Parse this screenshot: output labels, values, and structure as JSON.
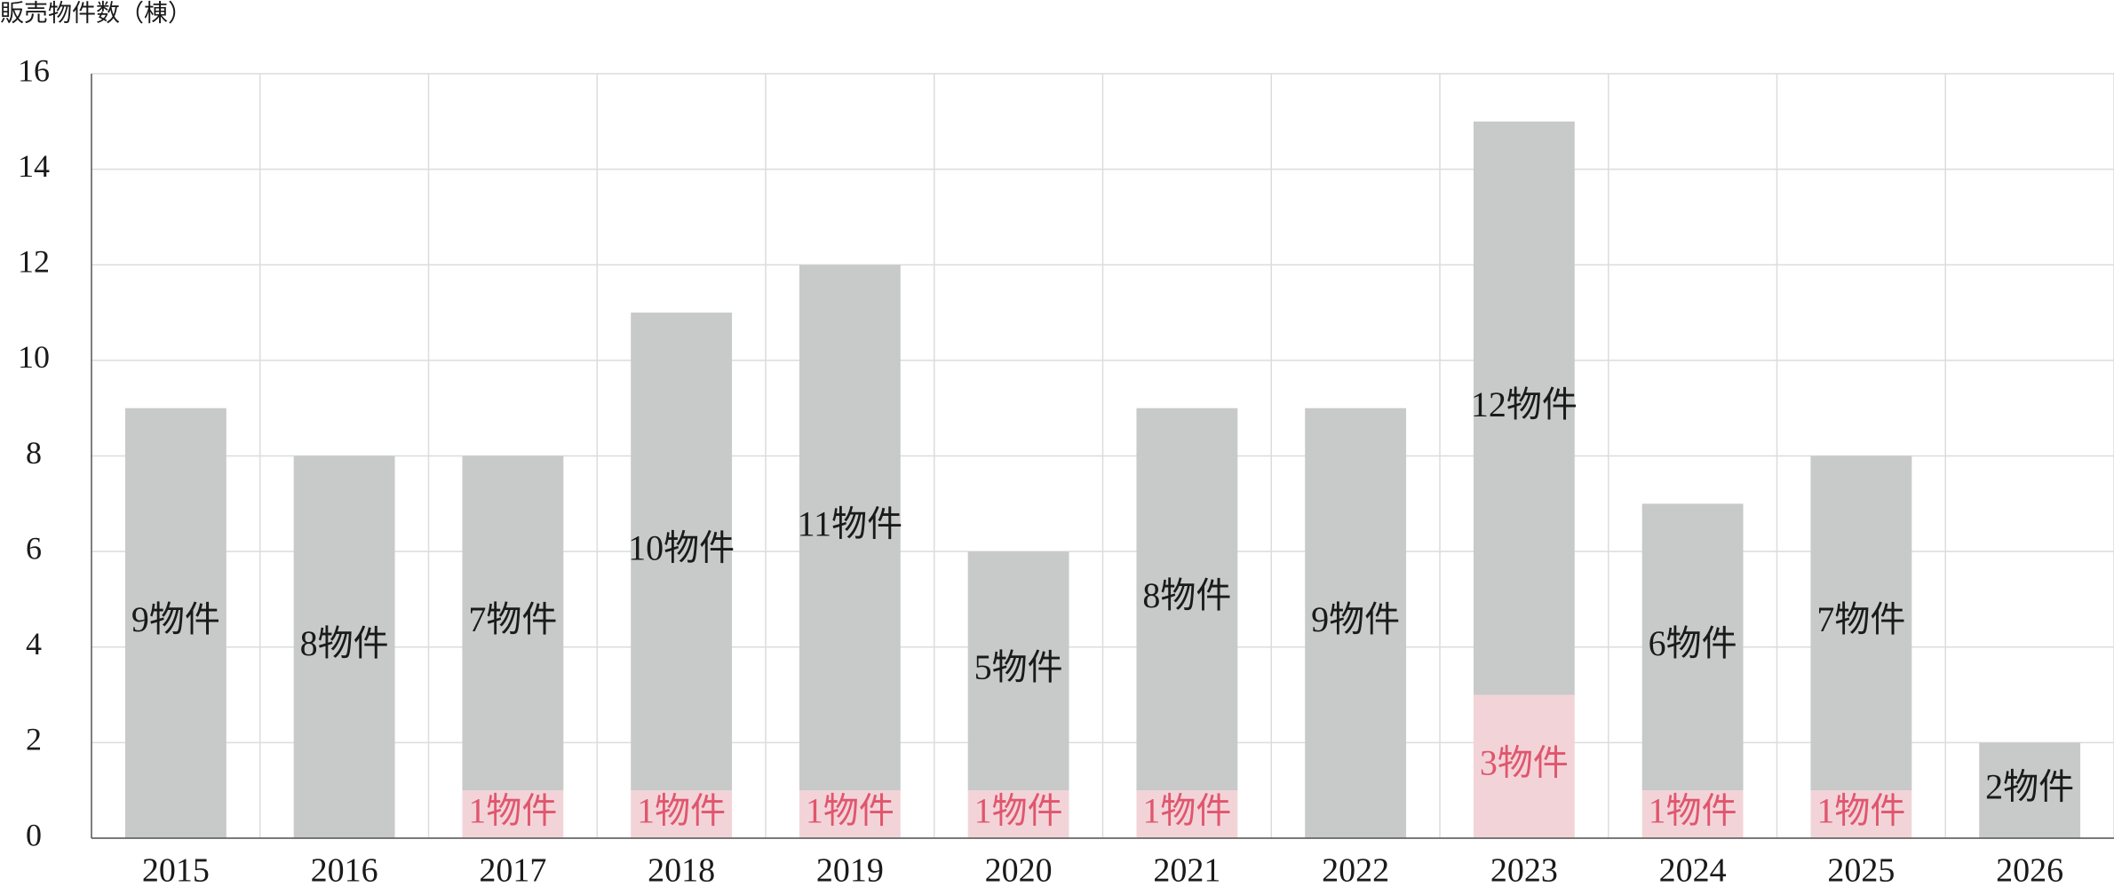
{
  "chart_data": {
    "type": "stacked_bar",
    "y_label": "販売物件数（棟）",
    "categories": [
      "2015",
      "2016",
      "2017",
      "2018",
      "2019",
      "2020",
      "2021",
      "2022",
      "2023",
      "2024",
      "2025",
      "2026"
    ],
    "series": [
      {
        "color": "#f2d4d8",
        "label_color": "#e0566e",
        "values": [
          0,
          0,
          1,
          1,
          1,
          1,
          1,
          0,
          3,
          1,
          1,
          0
        ],
        "value_labels": [
          null,
          null,
          "1物件",
          "1物件",
          "1物件",
          "1物件",
          "1物件",
          null,
          "3物件",
          "1物件",
          "1物件",
          null
        ]
      },
      {
        "color": "#c8c9c9",
        "label_color": "#1a1a1a",
        "values": [
          9,
          8,
          7,
          10,
          11,
          5,
          8,
          9,
          12,
          6,
          7,
          2
        ],
        "value_labels": [
          "9物件",
          "8物件",
          "7物件",
          "10物件",
          "11物件",
          "5物件",
          "8物件",
          "9物件",
          "12物件",
          "6物件",
          "7物件",
          "2物件"
        ]
      }
    ],
    "ylim": [
      0,
      16
    ],
    "yticks": [
      0,
      2,
      4,
      6,
      8,
      10,
      12,
      14,
      16
    ],
    "grid": true
  }
}
